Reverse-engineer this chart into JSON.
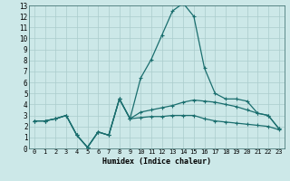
{
  "xlabel": "Humidex (Indice chaleur)",
  "xlim": [
    -0.5,
    23.5
  ],
  "ylim": [
    0,
    13
  ],
  "xticks": [
    0,
    1,
    2,
    3,
    4,
    5,
    6,
    7,
    8,
    9,
    10,
    11,
    12,
    13,
    14,
    15,
    16,
    17,
    18,
    19,
    20,
    21,
    22,
    23
  ],
  "yticks": [
    0,
    1,
    2,
    3,
    4,
    5,
    6,
    7,
    8,
    9,
    10,
    11,
    12,
    13
  ],
  "bg_color": "#cce8e8",
  "grid_color": "#aacccc",
  "line_color": "#1a6e6e",
  "series": [
    {
      "x": [
        0,
        1,
        2,
        3,
        4,
        5,
        6,
        7,
        8,
        9,
        10,
        11,
        12,
        13,
        14,
        15,
        16,
        17,
        18,
        19,
        20,
        21,
        22,
        23
      ],
      "y": [
        2.5,
        2.5,
        2.7,
        3.0,
        1.2,
        0.1,
        1.5,
        1.2,
        4.5,
        2.7,
        6.4,
        8.1,
        10.3,
        12.5,
        13.2,
        12.0,
        7.3,
        5.0,
        4.5,
        4.5,
        4.3,
        3.2,
        3.0,
        1.8
      ]
    },
    {
      "x": [
        0,
        1,
        2,
        3,
        4,
        5,
        6,
        7,
        8,
        9,
        10,
        11,
        12,
        13,
        14,
        15,
        16,
        17,
        18,
        19,
        20,
        21,
        22,
        23
      ],
      "y": [
        2.5,
        2.5,
        2.7,
        3.0,
        1.2,
        0.1,
        1.5,
        1.2,
        4.5,
        2.7,
        3.3,
        3.5,
        3.7,
        3.9,
        4.2,
        4.4,
        4.3,
        4.2,
        4.0,
        3.8,
        3.5,
        3.2,
        3.0,
        1.8
      ]
    },
    {
      "x": [
        0,
        1,
        2,
        3,
        4,
        5,
        6,
        7,
        8,
        9,
        10,
        11,
        12,
        13,
        14,
        15,
        16,
        17,
        18,
        19,
        20,
        21,
        22,
        23
      ],
      "y": [
        2.5,
        2.5,
        2.7,
        3.0,
        1.2,
        0.1,
        1.5,
        1.2,
        4.5,
        2.7,
        2.8,
        2.9,
        2.9,
        3.0,
        3.0,
        3.0,
        2.7,
        2.5,
        2.4,
        2.3,
        2.2,
        2.1,
        2.0,
        1.7
      ]
    }
  ]
}
